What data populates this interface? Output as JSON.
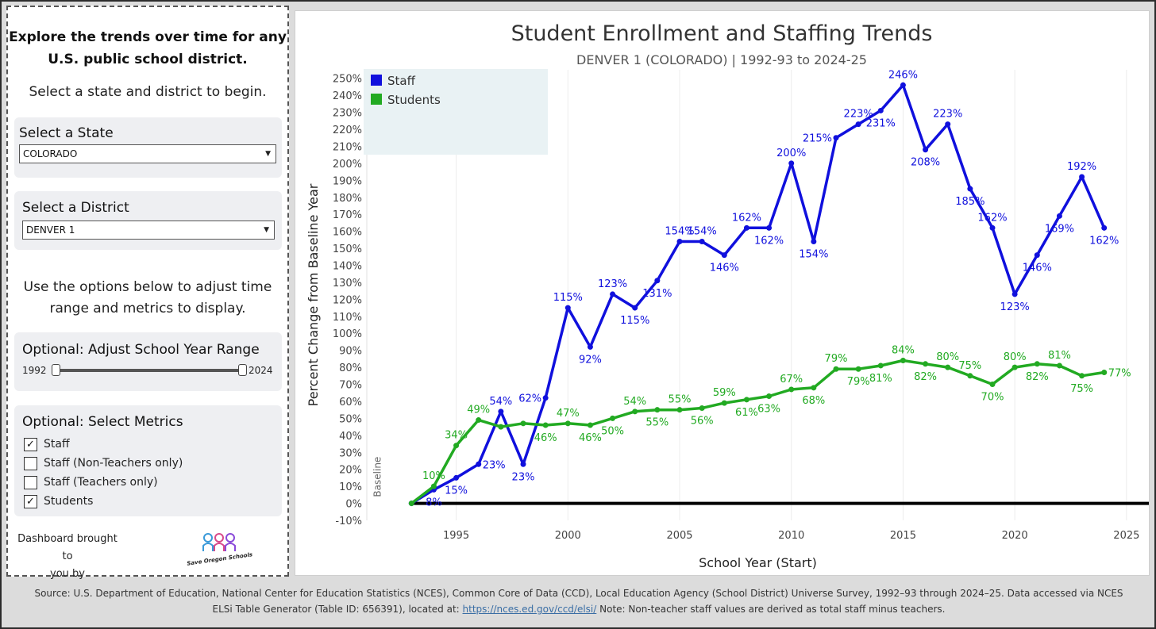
{
  "sidebar": {
    "intro_line1": "Explore the trends over time for any",
    "intro_line2": "U.S. public school district.",
    "intro_sub": "Select a state and district to begin.",
    "state_label": "Select a State",
    "state_value": "COLORADO",
    "district_label": "Select a District",
    "district_value": "DENVER 1",
    "options_line1": "Use the options below to adjust time",
    "options_line2": "range and metrics to display.",
    "range_label": "Optional: Adjust School Year Range",
    "range_min": "1992",
    "range_max": "2024",
    "metrics_label": "Optional: Select Metrics",
    "metrics": [
      {
        "label": "Staff",
        "checked": true
      },
      {
        "label": "Staff (Non-Teachers only)",
        "checked": false
      },
      {
        "label": "Staff (Teachers only)",
        "checked": false
      },
      {
        "label": "Students",
        "checked": true
      }
    ],
    "brought_line1": "Dashboard brought to",
    "brought_line2": "you by",
    "logo_text": "Save Oregon Schools"
  },
  "footer": {
    "line1": "Source: U.S. Department of Education, National Center for Education Statistics (NCES), Common Core of Data (CCD), Local Education Agency (School District) Universe Survey, 1992–93 through 2024–25. Data accessed via NCES",
    "line2_pre": "ELSi Table Generator (Table ID: 656391), located at: ",
    "link": "https://nces.ed.gov/ccd/elsi/",
    "line2_post": " Note: Non-teacher staff values are derived as total staff minus teachers."
  },
  "colors": {
    "staff": "#1010dd",
    "students": "#22aa22",
    "baseline": "#000000"
  },
  "chart_data": {
    "type": "line",
    "title": "Student Enrollment and Staffing Trends",
    "subtitle": "DENVER 1 (COLORADO) | 1992-93 to 2024-25",
    "xlabel": "School Year (Start)",
    "ylabel": "Percent Change from Baseline Year",
    "baseline_label": "Baseline",
    "xlim": [
      1991,
      2026
    ],
    "ylim": [
      -10,
      255
    ],
    "x_ticks": [
      1995,
      2000,
      2005,
      2010,
      2015,
      2020,
      2025
    ],
    "y_ticks": [
      -10,
      0,
      10,
      20,
      30,
      40,
      50,
      60,
      70,
      80,
      90,
      100,
      110,
      120,
      130,
      140,
      150,
      160,
      170,
      180,
      190,
      200,
      210,
      220,
      230,
      240,
      250
    ],
    "legend": [
      {
        "name": "Staff",
        "color": "#1010dd"
      },
      {
        "name": "Students",
        "color": "#22aa22"
      }
    ],
    "x": [
      1993,
      1994,
      1995,
      1996,
      1997,
      1998,
      1999,
      2000,
      2001,
      2002,
      2003,
      2004,
      2005,
      2006,
      2007,
      2008,
      2009,
      2010,
      2011,
      2012,
      2013,
      2014,
      2015,
      2016,
      2017,
      2018,
      2019,
      2020,
      2021,
      2022,
      2023,
      2024
    ],
    "series": [
      {
        "name": "Staff",
        "color": "#1010dd",
        "values": [
          0,
          8,
          15,
          23,
          54,
          23,
          62,
          115,
          92,
          123,
          115,
          131,
          154,
          154,
          146,
          162,
          162,
          200,
          154,
          215,
          223,
          231,
          246,
          208,
          223,
          185,
          162,
          123,
          146,
          169,
          192,
          162
        ],
        "labels": [
          null,
          "8%",
          "15%",
          "23%",
          "54%",
          "23%",
          "62%",
          "115%",
          "92%",
          "123%",
          "115%",
          "131%",
          "154%",
          "154%",
          "146%",
          "162%",
          "162%",
          "200%",
          "154%",
          "215%",
          "223%",
          "231%",
          "246%",
          "208%",
          "223%",
          "185%",
          "162%",
          "123%",
          "146%",
          "169%",
          "192%",
          "162%"
        ],
        "label_pos": [
          null,
          "below",
          "below",
          "right",
          "above",
          "below",
          "left",
          "above",
          "below",
          "above",
          "below",
          "below",
          "above",
          "above",
          "below",
          "above",
          "below",
          "above",
          "below",
          "left",
          "above",
          "below",
          "above",
          "below",
          "above",
          "below",
          "above",
          "below",
          "below",
          "below",
          "above",
          "below"
        ]
      },
      {
        "name": "Students",
        "color": "#22aa22",
        "values": [
          0,
          10,
          34,
          49,
          45,
          47,
          46,
          47,
          46,
          50,
          54,
          55,
          55,
          56,
          59,
          61,
          63,
          67,
          68,
          79,
          79,
          81,
          84,
          82,
          80,
          75,
          70,
          80,
          82,
          81,
          75,
          77
        ],
        "labels": [
          null,
          "10%",
          "34%",
          "49%",
          null,
          null,
          "46%",
          "47%",
          "46%",
          "50%",
          "54%",
          "55%",
          "55%",
          "56%",
          "59%",
          "61%",
          "63%",
          "67%",
          "68%",
          "79%",
          "79%",
          "81%",
          "84%",
          "82%",
          "80%",
          "75%",
          "70%",
          "80%",
          "82%",
          "81%",
          "75%",
          "77%"
        ],
        "label_pos": [
          null,
          "above",
          "above",
          "above",
          null,
          null,
          "below",
          "above",
          "below",
          "below",
          "above",
          "below",
          "above",
          "below",
          "above",
          "below",
          "below",
          "above",
          "below",
          "above",
          "below",
          "below",
          "above",
          "below",
          "above",
          "above",
          "below",
          "above",
          "below",
          "above",
          "below",
          "right"
        ]
      }
    ]
  }
}
